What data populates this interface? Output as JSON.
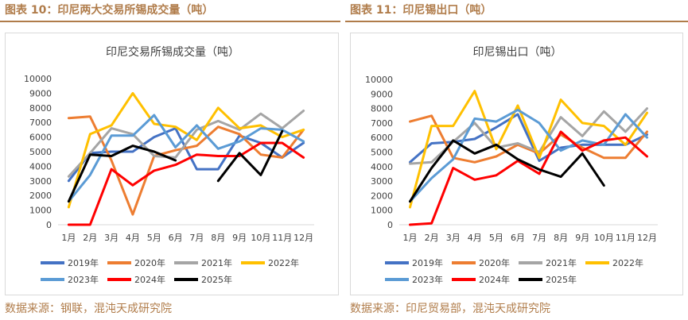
{
  "left": {
    "figure_title": "图表 10：印尼两大交易所锡成交量（吨）",
    "source": "数据来源：钢联，混沌天成研究院"
  },
  "right": {
    "figure_title": "图表 11：印尼锡出口（吨）",
    "source": "数据来源：印尼贸易部，混沌天成研究院"
  },
  "colors": {
    "accent": "#b07c4a",
    "2019年": "#4472c4",
    "2020年": "#ed7d31",
    "2021年": "#a5a5a5",
    "2022年": "#ffc000",
    "2023年": "#5b9bd5",
    "2024年": "#ff0000",
    "2025年": "#000000"
  },
  "chart_data": [
    {
      "type": "line",
      "title": "印尼交易所锡成交量（吨）",
      "xlabel": "",
      "ylabel": "",
      "ylim": [
        0,
        10000
      ],
      "yticks": [
        "0",
        "1000",
        "2000",
        "3000",
        "4000",
        "5000",
        "6000",
        "7000",
        "8000",
        "9000",
        "10000"
      ],
      "categories": [
        "1月",
        "2月",
        "3月",
        "4月",
        "5月",
        "6月",
        "7月",
        "8月",
        "9月",
        "10月",
        "11月",
        "12月"
      ],
      "series": [
        {
          "name": "2019年",
          "values": [
            3000,
            4900,
            5000,
            5000,
            6000,
            6600,
            3800,
            3800,
            6100,
            5600,
            4600,
            5600
          ]
        },
        {
          "name": "2020年",
          "values": [
            7300,
            7400,
            4400,
            700,
            4700,
            5100,
            5400,
            6700,
            6200,
            4800,
            4600,
            6500
          ]
        },
        {
          "name": "2021年",
          "values": [
            3300,
            4900,
            6600,
            6200,
            4700,
            4600,
            6500,
            7100,
            6500,
            7600,
            6600,
            7800
          ]
        },
        {
          "name": "2022年",
          "values": [
            1200,
            6200,
            6800,
            9000,
            6900,
            6700,
            5800,
            8000,
            6600,
            6800,
            6000,
            6500
          ]
        },
        {
          "name": "2023年",
          "values": [
            1600,
            3400,
            6100,
            6100,
            7500,
            5300,
            6800,
            5200,
            5700,
            6600,
            6500,
            5700
          ]
        },
        {
          "name": "2024年",
          "values": [
            0,
            0,
            3800,
            2700,
            3700,
            4100,
            4800,
            4700,
            4700,
            5600,
            5600,
            4600
          ]
        },
        {
          "name": "2025年",
          "values": [
            1600,
            4800,
            4700,
            5400,
            5000,
            4400,
            null,
            3000,
            4900,
            3400,
            6400,
            null
          ]
        }
      ]
    },
    {
      "type": "line",
      "title": "印尼锡出口（吨）",
      "xlabel": "",
      "ylabel": "",
      "ylim": [
        0,
        10000
      ],
      "yticks": [
        "0",
        "1000",
        "2000",
        "3000",
        "4000",
        "5000",
        "6000",
        "7000",
        "8000",
        "9000",
        "10000"
      ],
      "categories": [
        "1月",
        "2月",
        "3月",
        "4月",
        "5月",
        "6月",
        "7月",
        "8月",
        "9月",
        "10月",
        "11月",
        "12月"
      ],
      "series": [
        {
          "name": "2019年",
          "values": [
            4300,
            5600,
            5700,
            5900,
            6700,
            7600,
            4400,
            5300,
            5500,
            5500,
            5500,
            6200
          ]
        },
        {
          "name": "2020年",
          "values": [
            7100,
            7500,
            4600,
            4300,
            4700,
            5500,
            4900,
            6200,
            5300,
            4600,
            4600,
            6400
          ]
        },
        {
          "name": "2021年",
          "values": [
            4200,
            4300,
            5700,
            7000,
            5300,
            5600,
            5000,
            7400,
            6100,
            7800,
            6400,
            8000
          ]
        },
        {
          "name": "2022年",
          "values": [
            1200,
            6800,
            6800,
            9200,
            5200,
            8200,
            4600,
            8600,
            7000,
            6800,
            5500,
            7700
          ]
        },
        {
          "name": "2023年",
          "values": [
            1600,
            3200,
            4500,
            7300,
            7100,
            7900,
            7000,
            5100,
            5800,
            5500,
            7600,
            6000
          ]
        },
        {
          "name": "2024年",
          "values": [
            0,
            100,
            3900,
            3100,
            3400,
            4400,
            3500,
            6400,
            5100,
            5800,
            6000,
            4700
          ]
        },
        {
          "name": "2025年",
          "values": [
            1600,
            3900,
            5800,
            4900,
            5500,
            4500,
            3800,
            3300,
            4900,
            2700,
            null,
            null
          ]
        }
      ]
    }
  ]
}
